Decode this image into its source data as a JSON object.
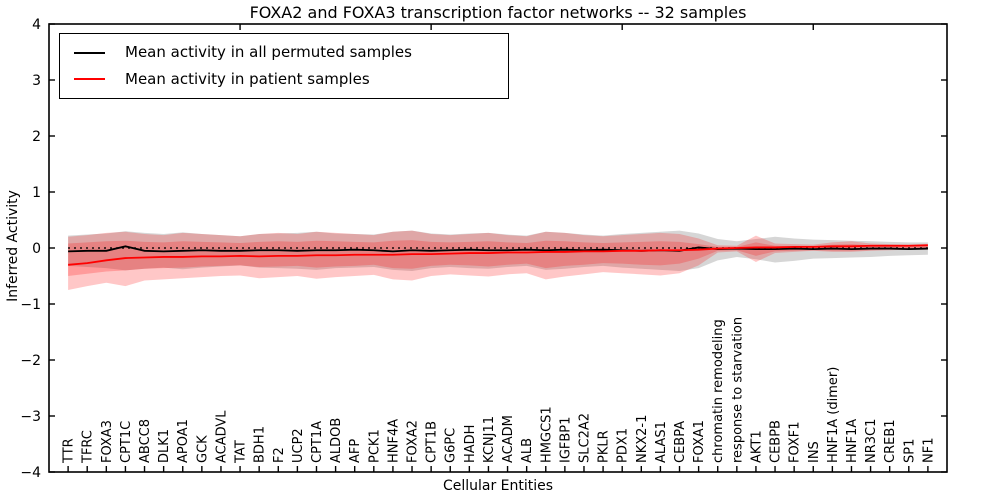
{
  "title": "FOXA2 and FOXA3 transcription factor networks -- 32 samples",
  "axes": {
    "ylabel": "Inferred Activity",
    "xlabel": "Cellular Entities",
    "ytick_labels": [
      "4",
      "3",
      "2",
      "1",
      "0",
      "−1",
      "−2",
      "−3",
      "−4"
    ],
    "ylim": [
      -4,
      4
    ],
    "top_tick_positions": [
      10,
      20,
      30,
      40
    ]
  },
  "legend": {
    "items": [
      {
        "label": "Mean activity in all permuted samples",
        "color": "#000000"
      },
      {
        "label": "Mean activity in patient samples",
        "color": "#ff0000"
      }
    ]
  },
  "colors": {
    "permuted_line": "#000000",
    "patient_line": "#ff0000",
    "permuted_band": "#999999",
    "patient_band": "#ff0000",
    "zero_line": "#000000",
    "spine": "#000000",
    "background": "#ffffff"
  },
  "chart_data": {
    "type": "line",
    "title": "FOXA2 and FOXA3 transcription factor networks -- 32 samples",
    "xlabel": "Cellular Entities",
    "ylabel": "Inferred Activity",
    "ylim": [
      -4,
      4
    ],
    "grid": false,
    "legend_position": "upper left",
    "zero_line": {
      "style": "dotted",
      "color": "#000000",
      "y": 0
    },
    "categories": [
      "TTR",
      "TFRC",
      "FOXA3",
      "CPT1C",
      "ABCC8",
      "DLK1",
      "APOA1",
      "GCK",
      "ACADVL",
      "TAT",
      "BDH1",
      "F2",
      "UCP2",
      "CPT1A",
      "ALDOB",
      "AFP",
      "PCK1",
      "HNF4A",
      "FOXA2",
      "CPT1B",
      "G6PC",
      "HADH",
      "KCNJ11",
      "ACADM",
      "ALB",
      "HMGCS1",
      "IGFBP1",
      "SLC2A2",
      "PKLR",
      "PDX1",
      "NKX2-1",
      "ALAS1",
      "CEBPA",
      "FOXA1",
      "chromatin remodeling",
      "response to starvation",
      "AKT1",
      "CEBPB",
      "FOXF1",
      "INS",
      "HNF1A (dimer)",
      "HNF1A",
      "NR3C1",
      "CREB1",
      "SP1",
      "NF1"
    ],
    "series": [
      {
        "name": "Mean activity in all permuted samples",
        "kind": "line",
        "color": "#000000",
        "values": [
          -0.06,
          -0.05,
          -0.05,
          0.03,
          -0.05,
          -0.06,
          -0.05,
          -0.04,
          -0.05,
          -0.05,
          -0.04,
          -0.04,
          -0.05,
          -0.04,
          -0.04,
          -0.03,
          -0.04,
          -0.06,
          -0.04,
          -0.05,
          -0.04,
          -0.03,
          -0.04,
          -0.04,
          -0.03,
          -0.04,
          -0.03,
          -0.04,
          -0.03,
          -0.04,
          -0.05,
          -0.04,
          -0.05,
          0.01,
          -0.02,
          -0.01,
          -0.02,
          -0.02,
          -0.01,
          -0.02,
          -0.01,
          -0.02,
          -0.01,
          -0.01,
          -0.02,
          -0.01
        ]
      },
      {
        "name": "Mean activity in patient samples",
        "kind": "line",
        "color": "#ff0000",
        "values": [
          -0.3,
          -0.27,
          -0.22,
          -0.18,
          -0.17,
          -0.16,
          -0.16,
          -0.15,
          -0.15,
          -0.14,
          -0.15,
          -0.14,
          -0.14,
          -0.13,
          -0.13,
          -0.12,
          -0.12,
          -0.12,
          -0.11,
          -0.11,
          -0.1,
          -0.09,
          -0.09,
          -0.08,
          -0.08,
          -0.07,
          -0.07,
          -0.06,
          -0.06,
          -0.05,
          -0.05,
          -0.04,
          -0.04,
          -0.03,
          -0.01,
          0.0,
          0.01,
          0.01,
          0.02,
          0.02,
          0.03,
          0.03,
          0.04,
          0.04,
          0.04,
          0.05
        ]
      },
      {
        "name": "Permuted samples band",
        "kind": "band",
        "color": "#999999",
        "opacity": 0.4,
        "upper": [
          0.22,
          0.24,
          0.26,
          0.3,
          0.27,
          0.25,
          0.28,
          0.25,
          0.23,
          0.21,
          0.25,
          0.26,
          0.27,
          0.29,
          0.26,
          0.25,
          0.24,
          0.29,
          0.31,
          0.26,
          0.24,
          0.26,
          0.27,
          0.24,
          0.22,
          0.29,
          0.27,
          0.24,
          0.22,
          0.25,
          0.27,
          0.29,
          0.31,
          0.26,
          0.16,
          0.12,
          0.16,
          0.2,
          0.17,
          0.15,
          0.14,
          0.13,
          0.12,
          0.11,
          0.1,
          0.1
        ],
        "lower": [
          -0.32,
          -0.34,
          -0.36,
          -0.4,
          -0.37,
          -0.35,
          -0.38,
          -0.35,
          -0.33,
          -0.31,
          -0.35,
          -0.36,
          -0.37,
          -0.39,
          -0.36,
          -0.35,
          -0.34,
          -0.39,
          -0.41,
          -0.36,
          -0.34,
          -0.36,
          -0.37,
          -0.34,
          -0.32,
          -0.39,
          -0.37,
          -0.34,
          -0.32,
          -0.35,
          -0.37,
          -0.39,
          -0.41,
          -0.36,
          -0.22,
          -0.16,
          -0.2,
          -0.26,
          -0.23,
          -0.19,
          -0.18,
          -0.17,
          -0.16,
          -0.14,
          -0.13,
          -0.12
        ]
      },
      {
        "name": "Patient samples outer band",
        "kind": "band",
        "color": "#ff0000",
        "opacity": 0.22,
        "upper": [
          0.2,
          0.23,
          0.27,
          0.29,
          0.25,
          0.23,
          0.27,
          0.25,
          0.23,
          0.21,
          0.25,
          0.27,
          0.25,
          0.29,
          0.27,
          0.25,
          0.23,
          0.29,
          0.31,
          0.25,
          0.23,
          0.25,
          0.27,
          0.23,
          0.21,
          0.29,
          0.27,
          0.23,
          0.21,
          0.23,
          0.25,
          0.27,
          0.25,
          0.17,
          0.05,
          0.04,
          0.22,
          0.08,
          0.07,
          0.06,
          0.1,
          0.12,
          0.08,
          0.07,
          0.06,
          0.06
        ],
        "lower": [
          -0.75,
          -0.68,
          -0.62,
          -0.68,
          -0.58,
          -0.56,
          -0.54,
          -0.52,
          -0.5,
          -0.49,
          -0.54,
          -0.52,
          -0.5,
          -0.55,
          -0.52,
          -0.5,
          -0.48,
          -0.56,
          -0.58,
          -0.5,
          -0.47,
          -0.49,
          -0.51,
          -0.47,
          -0.45,
          -0.56,
          -0.51,
          -0.47,
          -0.43,
          -0.45,
          -0.47,
          -0.49,
          -0.45,
          -0.31,
          -0.08,
          -0.06,
          -0.25,
          -0.09,
          -0.07,
          -0.05,
          -0.07,
          -0.07,
          -0.05,
          -0.04,
          -0.03,
          -0.03
        ]
      },
      {
        "name": "Patient samples inner band",
        "kind": "band",
        "color": "#ff0000",
        "opacity": 0.22,
        "upper": [
          0.08,
          0.1,
          0.12,
          0.13,
          0.11,
          0.1,
          0.12,
          0.11,
          0.1,
          0.09,
          0.11,
          0.12,
          0.11,
          0.13,
          0.12,
          0.11,
          0.1,
          0.13,
          0.14,
          0.11,
          0.1,
          0.11,
          0.12,
          0.1,
          0.09,
          0.13,
          0.12,
          0.1,
          0.09,
          0.1,
          0.11,
          0.12,
          0.11,
          0.07,
          0.02,
          0.02,
          0.1,
          0.04,
          0.03,
          0.03,
          0.06,
          0.07,
          0.05,
          0.04,
          0.04,
          0.04
        ],
        "lower": [
          -0.5,
          -0.46,
          -0.42,
          -0.4,
          -0.37,
          -0.36,
          -0.35,
          -0.33,
          -0.32,
          -0.31,
          -0.34,
          -0.33,
          -0.32,
          -0.35,
          -0.33,
          -0.32,
          -0.3,
          -0.36,
          -0.37,
          -0.32,
          -0.3,
          -0.31,
          -0.33,
          -0.3,
          -0.28,
          -0.36,
          -0.32,
          -0.3,
          -0.27,
          -0.28,
          -0.3,
          -0.31,
          -0.28,
          -0.19,
          -0.05,
          -0.04,
          -0.14,
          -0.06,
          -0.05,
          -0.04,
          -0.05,
          -0.05,
          -0.04,
          -0.03,
          -0.03,
          -0.03
        ]
      }
    ]
  }
}
